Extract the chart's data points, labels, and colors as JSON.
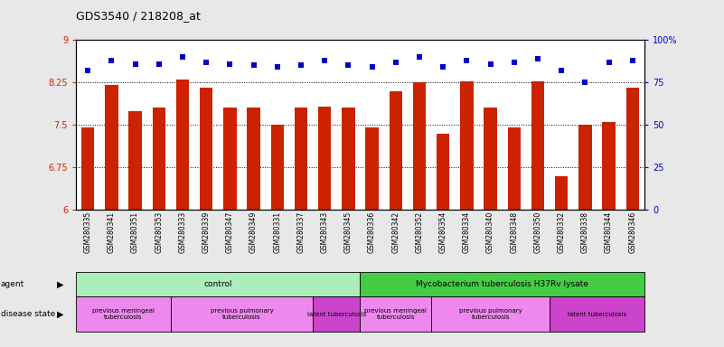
{
  "title": "GDS3540 / 218208_at",
  "samples": [
    "GSM280335",
    "GSM280341",
    "GSM280351",
    "GSM280353",
    "GSM280333",
    "GSM280339",
    "GSM280347",
    "GSM280349",
    "GSM280331",
    "GSM280337",
    "GSM280343",
    "GSM280345",
    "GSM280336",
    "GSM280342",
    "GSM280352",
    "GSM280354",
    "GSM280334",
    "GSM280340",
    "GSM280348",
    "GSM280350",
    "GSM280332",
    "GSM280338",
    "GSM280344",
    "GSM280346"
  ],
  "bar_values": [
    7.45,
    8.2,
    7.75,
    7.8,
    8.3,
    8.15,
    7.8,
    7.8,
    7.5,
    7.8,
    7.82,
    7.8,
    7.45,
    8.1,
    8.25,
    7.35,
    8.27,
    7.8,
    7.45,
    8.27,
    6.6,
    7.5,
    7.55,
    8.15
  ],
  "percentile_values": [
    82,
    88,
    86,
    86,
    90,
    87,
    86,
    85,
    84,
    85,
    88,
    85,
    84,
    87,
    90,
    84,
    88,
    86,
    87,
    89,
    82,
    75,
    87,
    88
  ],
  "ylim_left": [
    6,
    9
  ],
  "ylim_right": [
    0,
    100
  ],
  "yticks_left": [
    6,
    6.75,
    7.5,
    8.25,
    9
  ],
  "ytick_labels_left": [
    "6",
    "6.75",
    "7.5",
    "8.25",
    "9"
  ],
  "yticks_right": [
    0,
    25,
    50,
    75,
    100
  ],
  "ytick_labels_right": [
    "0",
    "25",
    "50",
    "75",
    "100%"
  ],
  "bar_color": "#cc2200",
  "scatter_color": "#0000cc",
  "disease_groups": [
    {
      "label": "previous meningeal\ntuberculosis",
      "start": 0,
      "end": 3,
      "color": "#ee88ee"
    },
    {
      "label": "previous pulmonary\ntuberculosis",
      "start": 4,
      "end": 9,
      "color": "#ee88ee"
    },
    {
      "label": "latent tuberculosis",
      "start": 10,
      "end": 11,
      "color": "#cc44cc"
    },
    {
      "label": "previous meningeal\ntuberculosis",
      "start": 12,
      "end": 14,
      "color": "#ee88ee"
    },
    {
      "label": "previous pulmonary\ntuberculosis",
      "start": 15,
      "end": 19,
      "color": "#ee88ee"
    },
    {
      "label": "latent tuberculosis",
      "start": 20,
      "end": 23,
      "color": "#cc44cc"
    }
  ],
  "agent_groups": [
    {
      "label": "control",
      "start": 0,
      "end": 11,
      "color": "#aaeebb"
    },
    {
      "label": "Mycobacterium tuberculosis H37Rv lysate",
      "start": 12,
      "end": 23,
      "color": "#44cc44"
    }
  ],
  "tick_label_color_left": "#cc2200",
  "tick_label_color_right": "#0000cc",
  "fig_bg": "#e8e8e8",
  "plot_bg": "#ffffff"
}
